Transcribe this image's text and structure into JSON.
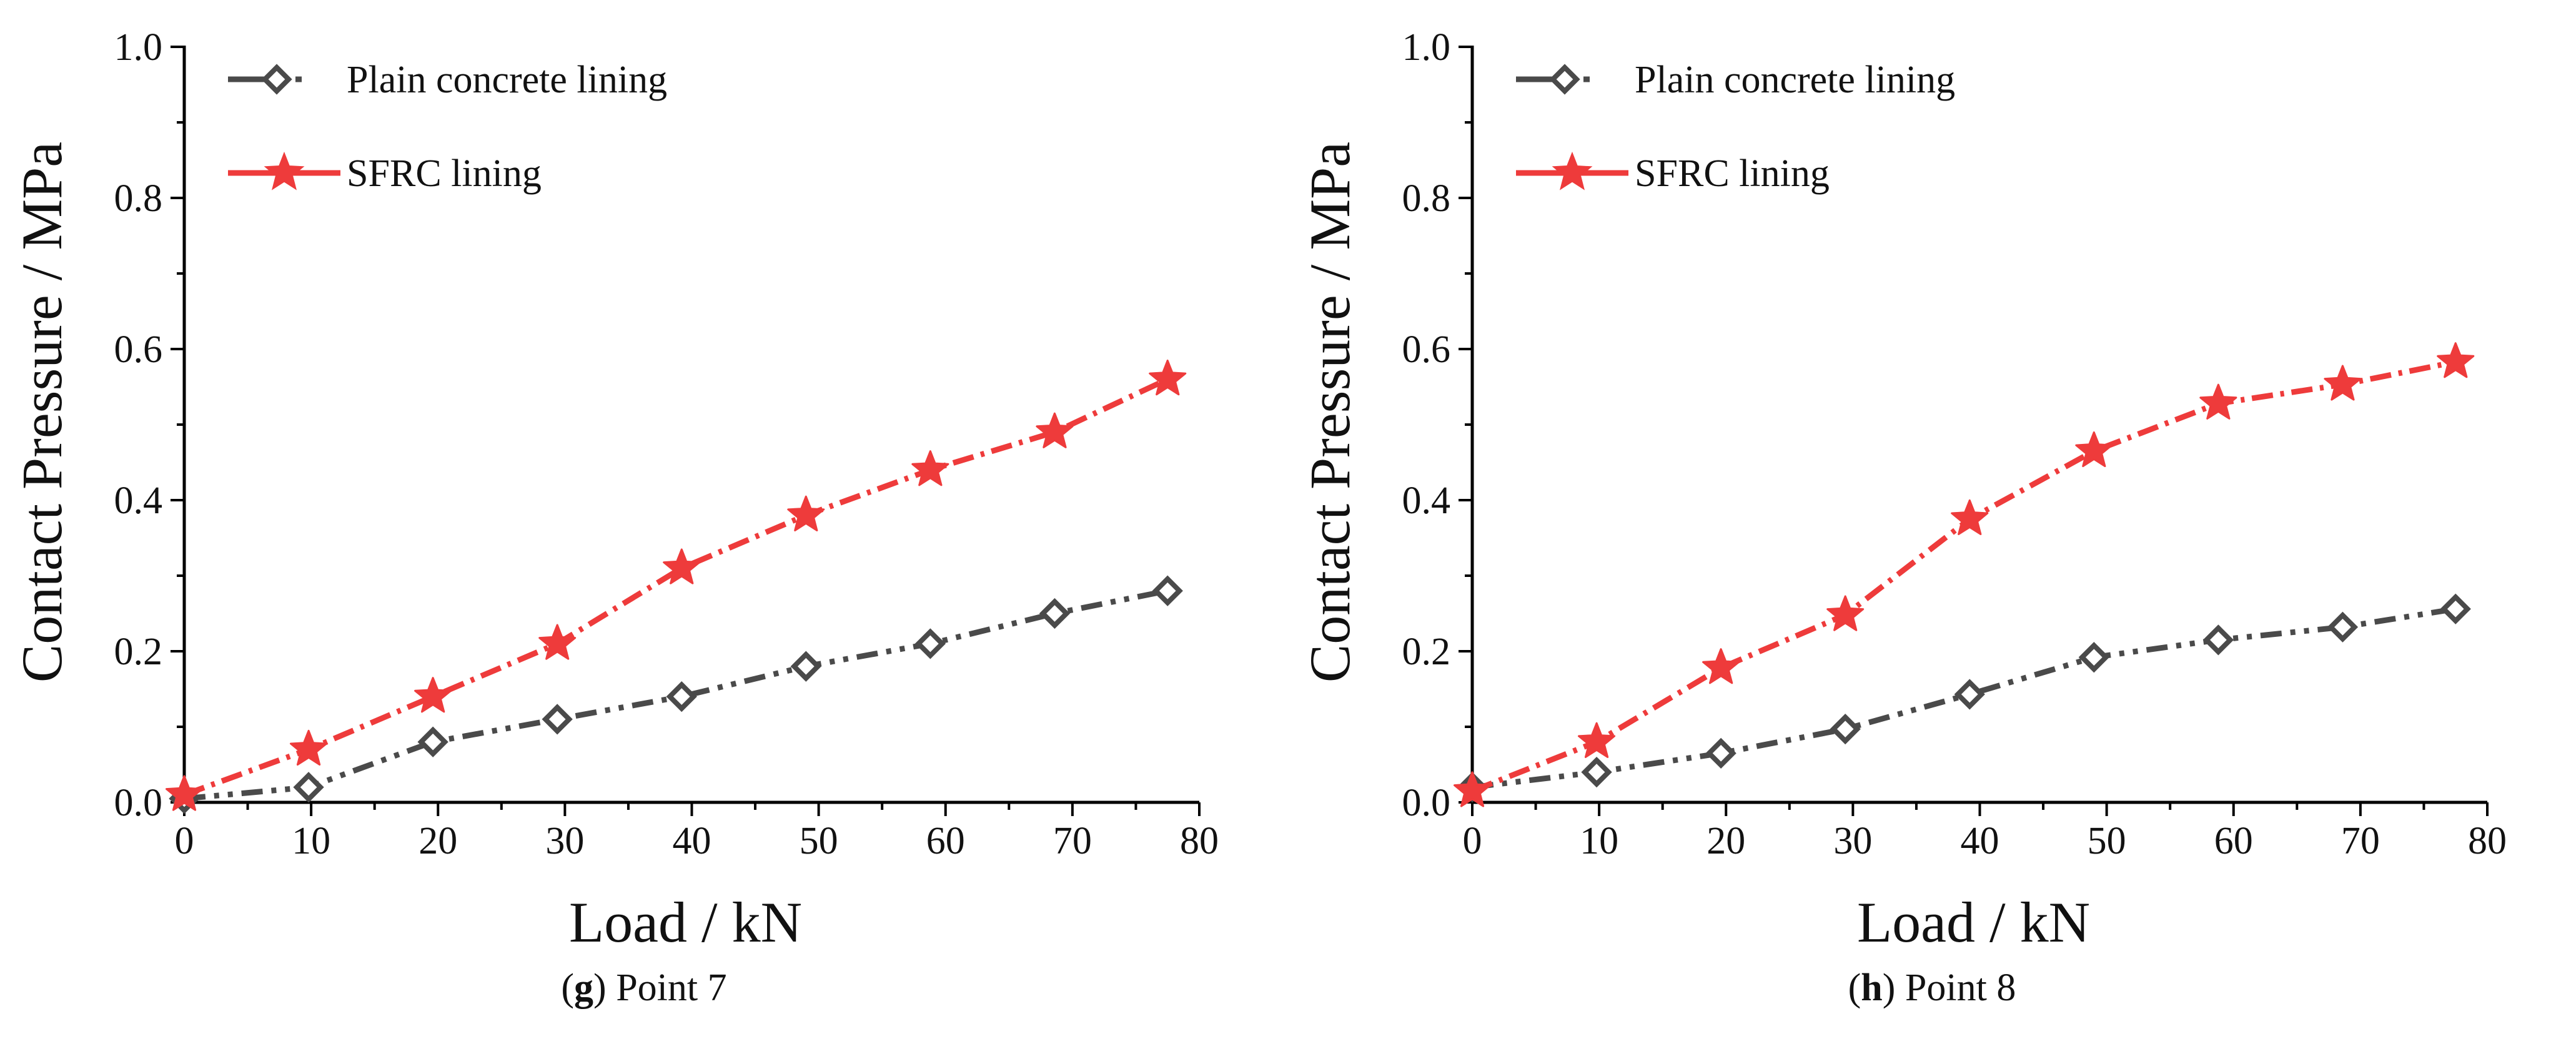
{
  "chart_data": [
    {
      "type": "line",
      "caption_letter": "g",
      "caption_text": "Point 7",
      "xlabel": "Load / kN",
      "ylabel": "Contact Pressure / MPa",
      "xlim": [
        0,
        80
      ],
      "ylim": [
        0,
        1.0
      ],
      "xticks": [
        "0",
        "10",
        "20",
        "30",
        "40",
        "50",
        "60",
        "70",
        "80"
      ],
      "yticks": [
        "0.0",
        "0.2",
        "0.4",
        "0.6",
        "0.8",
        "1.0"
      ],
      "legend_position": "top-left",
      "series": [
        {
          "name": "Plain concrete lining",
          "color": "#4a4a4a",
          "marker": "diamond",
          "x": [
            0,
            9.8,
            19.6,
            29.4,
            39.2,
            49,
            58.8,
            68.6,
            77.5
          ],
          "y": [
            0.005,
            0.02,
            0.08,
            0.11,
            0.14,
            0.18,
            0.21,
            0.25,
            0.28
          ]
        },
        {
          "name": "SFRC lining",
          "color": "#ee3b3b",
          "marker": "star",
          "x": [
            0,
            9.8,
            19.6,
            29.4,
            39.2,
            49,
            58.8,
            68.6,
            77.5
          ],
          "y": [
            0.01,
            0.07,
            0.14,
            0.21,
            0.31,
            0.38,
            0.44,
            0.49,
            0.56
          ]
        }
      ]
    },
    {
      "type": "line",
      "caption_letter": "h",
      "caption_text": "Point 8",
      "xlabel": "Load / kN",
      "ylabel": "Contact Pressure / MPa",
      "xlim": [
        0,
        80
      ],
      "ylim": [
        0,
        1.0
      ],
      "xticks": [
        "0",
        "10",
        "20",
        "30",
        "40",
        "50",
        "60",
        "70",
        "80"
      ],
      "yticks": [
        "0.0",
        "0.2",
        "0.4",
        "0.6",
        "0.8",
        "1.0"
      ],
      "legend_position": "top-left",
      "series": [
        {
          "name": "Plain concrete lining",
          "color": "#4a4a4a",
          "marker": "diamond",
          "x": [
            0,
            9.8,
            19.6,
            29.4,
            39.2,
            49,
            58.8,
            68.6,
            77.5
          ],
          "y": [
            0.02,
            0.04,
            0.065,
            0.097,
            0.143,
            0.192,
            0.215,
            0.232,
            0.256
          ]
        },
        {
          "name": "SFRC lining",
          "color": "#ee3b3b",
          "marker": "star",
          "x": [
            0,
            9.8,
            19.6,
            29.4,
            39.2,
            49,
            58.8,
            68.6,
            77.5
          ],
          "y": [
            0.015,
            0.08,
            0.178,
            0.248,
            0.375,
            0.465,
            0.528,
            0.553,
            0.583
          ]
        }
      ]
    }
  ]
}
